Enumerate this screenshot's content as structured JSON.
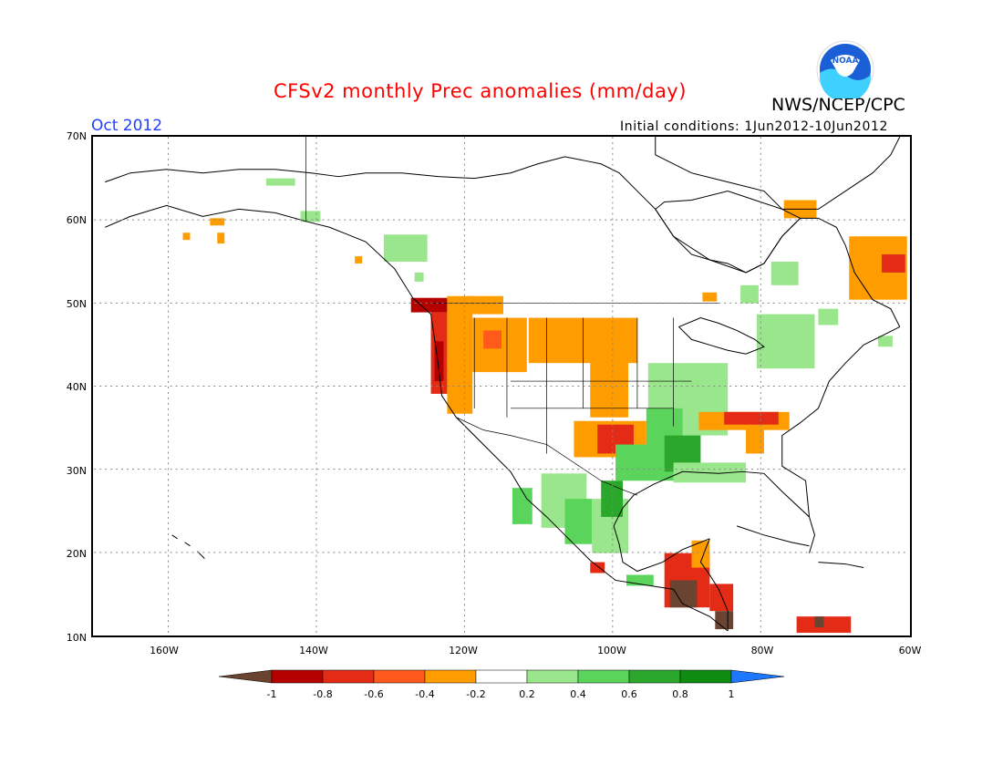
{
  "title": "CFSv2 monthly Prec anomalies (mm/day)",
  "agency": "NWS/NCEP/CPC",
  "logo_text": "NOAA",
  "valid_month": "Oct 2012",
  "initial_conditions": "Initial conditions: 1Jun2012-10Jun2012",
  "map": {
    "lat_labels": [
      "70N",
      "60N",
      "50N",
      "40N",
      "30N",
      "20N",
      "10N"
    ],
    "lon_labels": [
      "160W",
      "140W",
      "120W",
      "100W",
      "80W",
      "60W"
    ],
    "lat_range": [
      10,
      70
    ],
    "lon_range": [
      -170,
      -60
    ],
    "grid": "dotted"
  },
  "colorbar": {
    "labels": [
      "-1",
      "-0.8",
      "-0.6",
      "-0.4",
      "-0.2",
      "0.2",
      "0.4",
      "0.6",
      "0.8",
      "1"
    ],
    "colors": [
      "#6b4431",
      "#b50000",
      "#e32b16",
      "#ff5a1c",
      "#ff9d00",
      "#ffffff",
      "#9ae68c",
      "#5bd45c",
      "#2ba82b",
      "#0f8c0f",
      "#1e78ff"
    ]
  },
  "colors": {
    "title": "#ff0000",
    "month": "#1f3fff"
  }
}
